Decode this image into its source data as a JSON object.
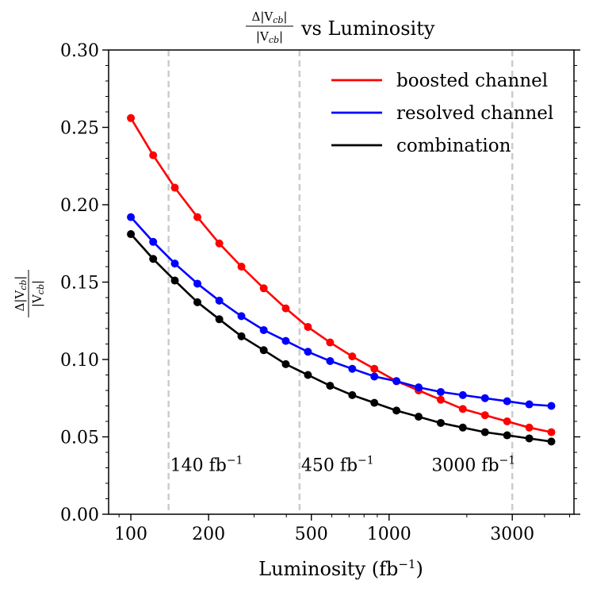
{
  "chart_data": {
    "type": "line",
    "title_prefix": "Δ|V_cb| / |V_cb|",
    "title_num": "Δ|V",
    "title_den": "|V",
    "title_sub": "cb",
    "title_suffix": "vs Luminosity",
    "xlabel": "Luminosity (fb",
    "xlabel_sup": "−1",
    "xlabel_close": ")",
    "ylabel_num": "Δ|V",
    "ylabel_den": "|V",
    "ylabel_sub": "cb",
    "xscale": "log",
    "xlim": [
      82,
      5200
    ],
    "ylim": [
      0.0,
      0.3
    ],
    "xticks": [
      100,
      200,
      500,
      1000,
      3000
    ],
    "xtick_labels": [
      "100",
      "200",
      "500",
      "1000",
      "3000"
    ],
    "yticks": [
      0.0,
      0.05,
      0.1,
      0.15,
      0.2,
      0.25,
      0.3
    ],
    "ytick_labels": [
      "0.00",
      "0.05",
      "0.10",
      "0.15",
      "0.20",
      "0.25",
      "0.30"
    ],
    "x": [
      100,
      122,
      148,
      181,
      220,
      268,
      327,
      398,
      485,
      591,
      720,
      877,
      1068,
      1301,
      1585,
      1930,
      2352,
      2865,
      3490,
      4250
    ],
    "series": [
      {
        "name": "boosted channel",
        "color": "#ff0000",
        "values": [
          0.256,
          0.232,
          0.211,
          0.192,
          0.175,
          0.16,
          0.146,
          0.133,
          0.121,
          0.111,
          0.102,
          0.094,
          0.086,
          0.08,
          0.074,
          0.068,
          0.064,
          0.06,
          0.056,
          0.053
        ]
      },
      {
        "name": "resolved channel",
        "color": "#0000ff",
        "values": [
          0.192,
          0.176,
          0.162,
          0.149,
          0.138,
          0.128,
          0.119,
          0.112,
          0.105,
          0.099,
          0.094,
          0.089,
          0.086,
          0.082,
          0.079,
          0.077,
          0.075,
          0.073,
          0.071,
          0.07
        ]
      },
      {
        "name": "combination",
        "color": "#000000",
        "values": [
          0.181,
          0.165,
          0.151,
          0.137,
          0.126,
          0.115,
          0.106,
          0.097,
          0.09,
          0.083,
          0.077,
          0.072,
          0.067,
          0.063,
          0.059,
          0.056,
          0.053,
          0.051,
          0.049,
          0.047
        ]
      }
    ],
    "vlines": [
      {
        "x": 140,
        "label": "140 fb",
        "sup": "−1"
      },
      {
        "x": 450,
        "label": "450 fb",
        "sup": "−1"
      },
      {
        "x": 3000,
        "label": "3000 fb",
        "sup": "−1"
      }
    ],
    "annotation_y": 0.028,
    "legend_position": "top-right"
  }
}
